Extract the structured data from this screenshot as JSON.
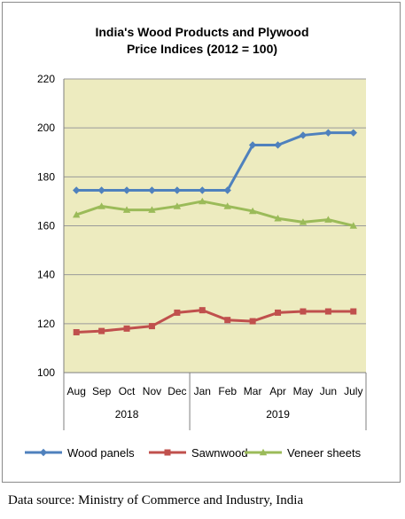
{
  "source_note": "Data source: Ministry of Commerce and Industry, India",
  "colors": {
    "plot_background": "#EDEBBF",
    "grid": "#9a9a9a",
    "wood_panels": "#4F81BD",
    "sawnwood": "#C0504D",
    "veneer_sheets": "#9BBB59"
  },
  "chart_data": {
    "type": "line",
    "title_lines": [
      "India's Wood Products and Plywood",
      "Price Indices (2012 = 100)"
    ],
    "categories": [
      "Aug",
      "Sep",
      "Oct",
      "Nov",
      "Dec",
      "Jan",
      "Feb",
      "Mar",
      "Apr",
      "May",
      "Jun",
      "July"
    ],
    "year_groups": [
      {
        "label": "2018",
        "count": 5
      },
      {
        "label": "2019",
        "count": 7
      }
    ],
    "ylim": [
      100,
      220
    ],
    "yticks": [
      100,
      120,
      140,
      160,
      180,
      200,
      220
    ],
    "grid": "horizontal",
    "legend_position": "bottom",
    "series": [
      {
        "name": "Wood panels",
        "color": "#4F81BD",
        "marker": "diamond",
        "values": [
          174.5,
          174.5,
          174.5,
          174.5,
          174.5,
          174.5,
          174.5,
          193,
          193,
          197,
          198,
          198
        ]
      },
      {
        "name": "Sawnwood",
        "color": "#C0504D",
        "marker": "square",
        "values": [
          116.5,
          117,
          118,
          119,
          124.5,
          125.5,
          121.5,
          121,
          124.5,
          125,
          125,
          125
        ]
      },
      {
        "name": "Veneer sheets",
        "color": "#9BBB59",
        "marker": "triangle",
        "values": [
          164.5,
          168,
          166.5,
          166.5,
          168,
          170,
          168,
          166,
          163,
          161.5,
          162.5,
          160
        ]
      }
    ]
  }
}
